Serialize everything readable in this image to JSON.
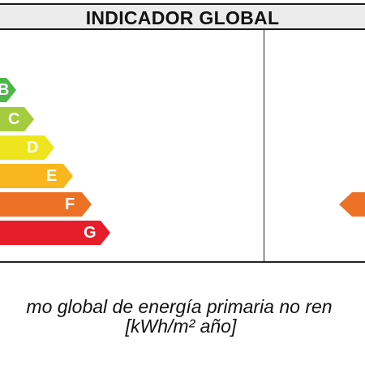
{
  "header": {
    "title": "INDICADOR GLOBAL"
  },
  "rating_scale": [
    {
      "letter": "B",
      "color": "#4cb748"
    },
    {
      "letter": "C",
      "color": "#a5cb3e"
    },
    {
      "letter": "D",
      "color": "#eee51f"
    },
    {
      "letter": "E",
      "color": "#f8b71f"
    },
    {
      "letter": "F",
      "color": "#ed7125"
    },
    {
      "letter": "G",
      "color": "#e61e2b"
    }
  ],
  "indicator": {
    "color": "#ed7125"
  },
  "caption": {
    "line1": "mo global de energía primaria no ren",
    "line2": "[kWh/m² año]"
  }
}
